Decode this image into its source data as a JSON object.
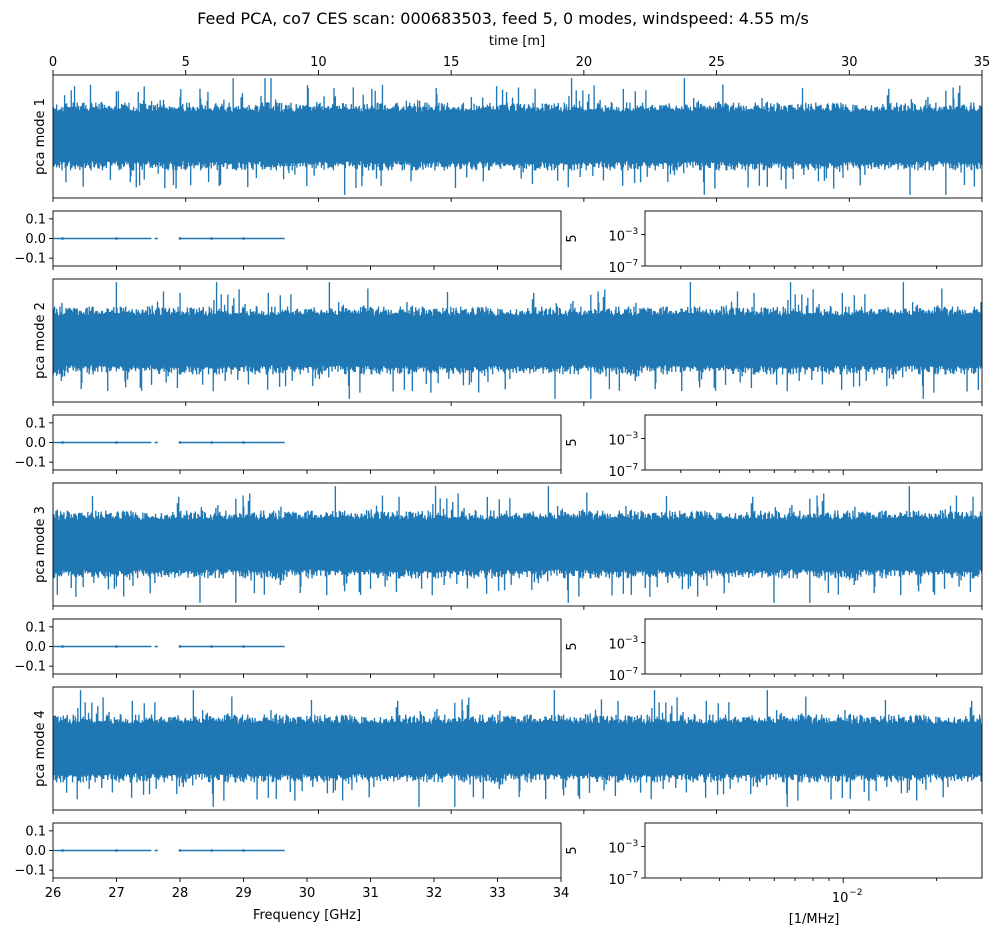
{
  "figure": {
    "title": "Feed PCA, co7 CES scan: 000683503, feed 5, 0 modes, windspeed: 4.55 m/s"
  },
  "colors": {
    "series": "#1f77b4",
    "axes": "#000000",
    "background": "#ffffff"
  },
  "chart_data": [
    {
      "type": "line",
      "id": "timestream",
      "title": "Feed PCA, co7 CES scan: 000683503, feed 5, 0 modes, windspeed: 4.55 m/s",
      "xlabel": "time [m]",
      "xlim": [
        0,
        35
      ],
      "xticks": [
        0,
        5,
        10,
        15,
        20,
        25,
        30,
        35
      ],
      "xticklabels": [
        "0",
        "5",
        "10",
        "15",
        "20",
        "25",
        "30",
        "35"
      ],
      "xaxis_position": "top",
      "series": [
        {
          "name": "pca mode 1",
          "ylabel": "pca mode 1",
          "description": "dense noise",
          "ylim": [
            -1,
            1
          ],
          "band": [
            -0.55,
            0.55
          ],
          "peak": 0.95
        },
        {
          "name": "pca mode 2",
          "ylabel": "pca mode 2",
          "description": "dense noise",
          "ylim": [
            -1,
            1
          ],
          "band": [
            -0.55,
            0.55
          ],
          "peak": 0.95
        },
        {
          "name": "pca mode 3",
          "ylabel": "pca mode 3",
          "description": "dense noise",
          "ylim": [
            -1,
            1
          ],
          "band": [
            -0.55,
            0.55
          ],
          "peak": 0.95
        },
        {
          "name": "pca mode 4",
          "ylabel": "pca mode 4",
          "description": "dense noise",
          "ylim": [
            -1,
            1
          ],
          "band": [
            -0.55,
            0.55
          ],
          "peak": 0.95
        }
      ]
    },
    {
      "type": "line",
      "id": "frequency",
      "xlabel": "Frequency [GHz]",
      "xlim": [
        26,
        34
      ],
      "xticks": [
        26,
        27,
        28,
        29,
        30,
        31,
        32,
        33,
        34
      ],
      "xticklabels": [
        "26",
        "27",
        "28",
        "29",
        "30",
        "31",
        "32",
        "33",
        "34"
      ],
      "ylim": [
        -0.14,
        0.14
      ],
      "yticks": [
        0.1,
        0.0,
        -0.1
      ],
      "yticklabels": [
        "0.1",
        "0.0",
        "−0.1"
      ],
      "right_label": "5",
      "segments": [
        [
          26.0,
          27.55
        ],
        [
          27.6,
          27.65
        ],
        [
          28.0,
          29.65
        ]
      ],
      "markers_x": [
        26.15,
        27.0,
        28.0,
        28.5,
        29.0
      ],
      "panels": 4
    },
    {
      "type": "line",
      "id": "spectrum",
      "xlabel": "[1/MHz]",
      "xscale": "log",
      "yscale": "log",
      "xlim": [
        0.0023,
        0.028
      ],
      "xticks": [
        0.01
      ],
      "xtick_base": "10",
      "xtick_exp": "−2",
      "yticks": [
        0.001,
        1e-07
      ],
      "ytick_base": "10",
      "ytick_exps": [
        "−3",
        "−7"
      ],
      "ylim": [
        1e-07,
        1
      ],
      "series": [],
      "panels": 4
    }
  ]
}
